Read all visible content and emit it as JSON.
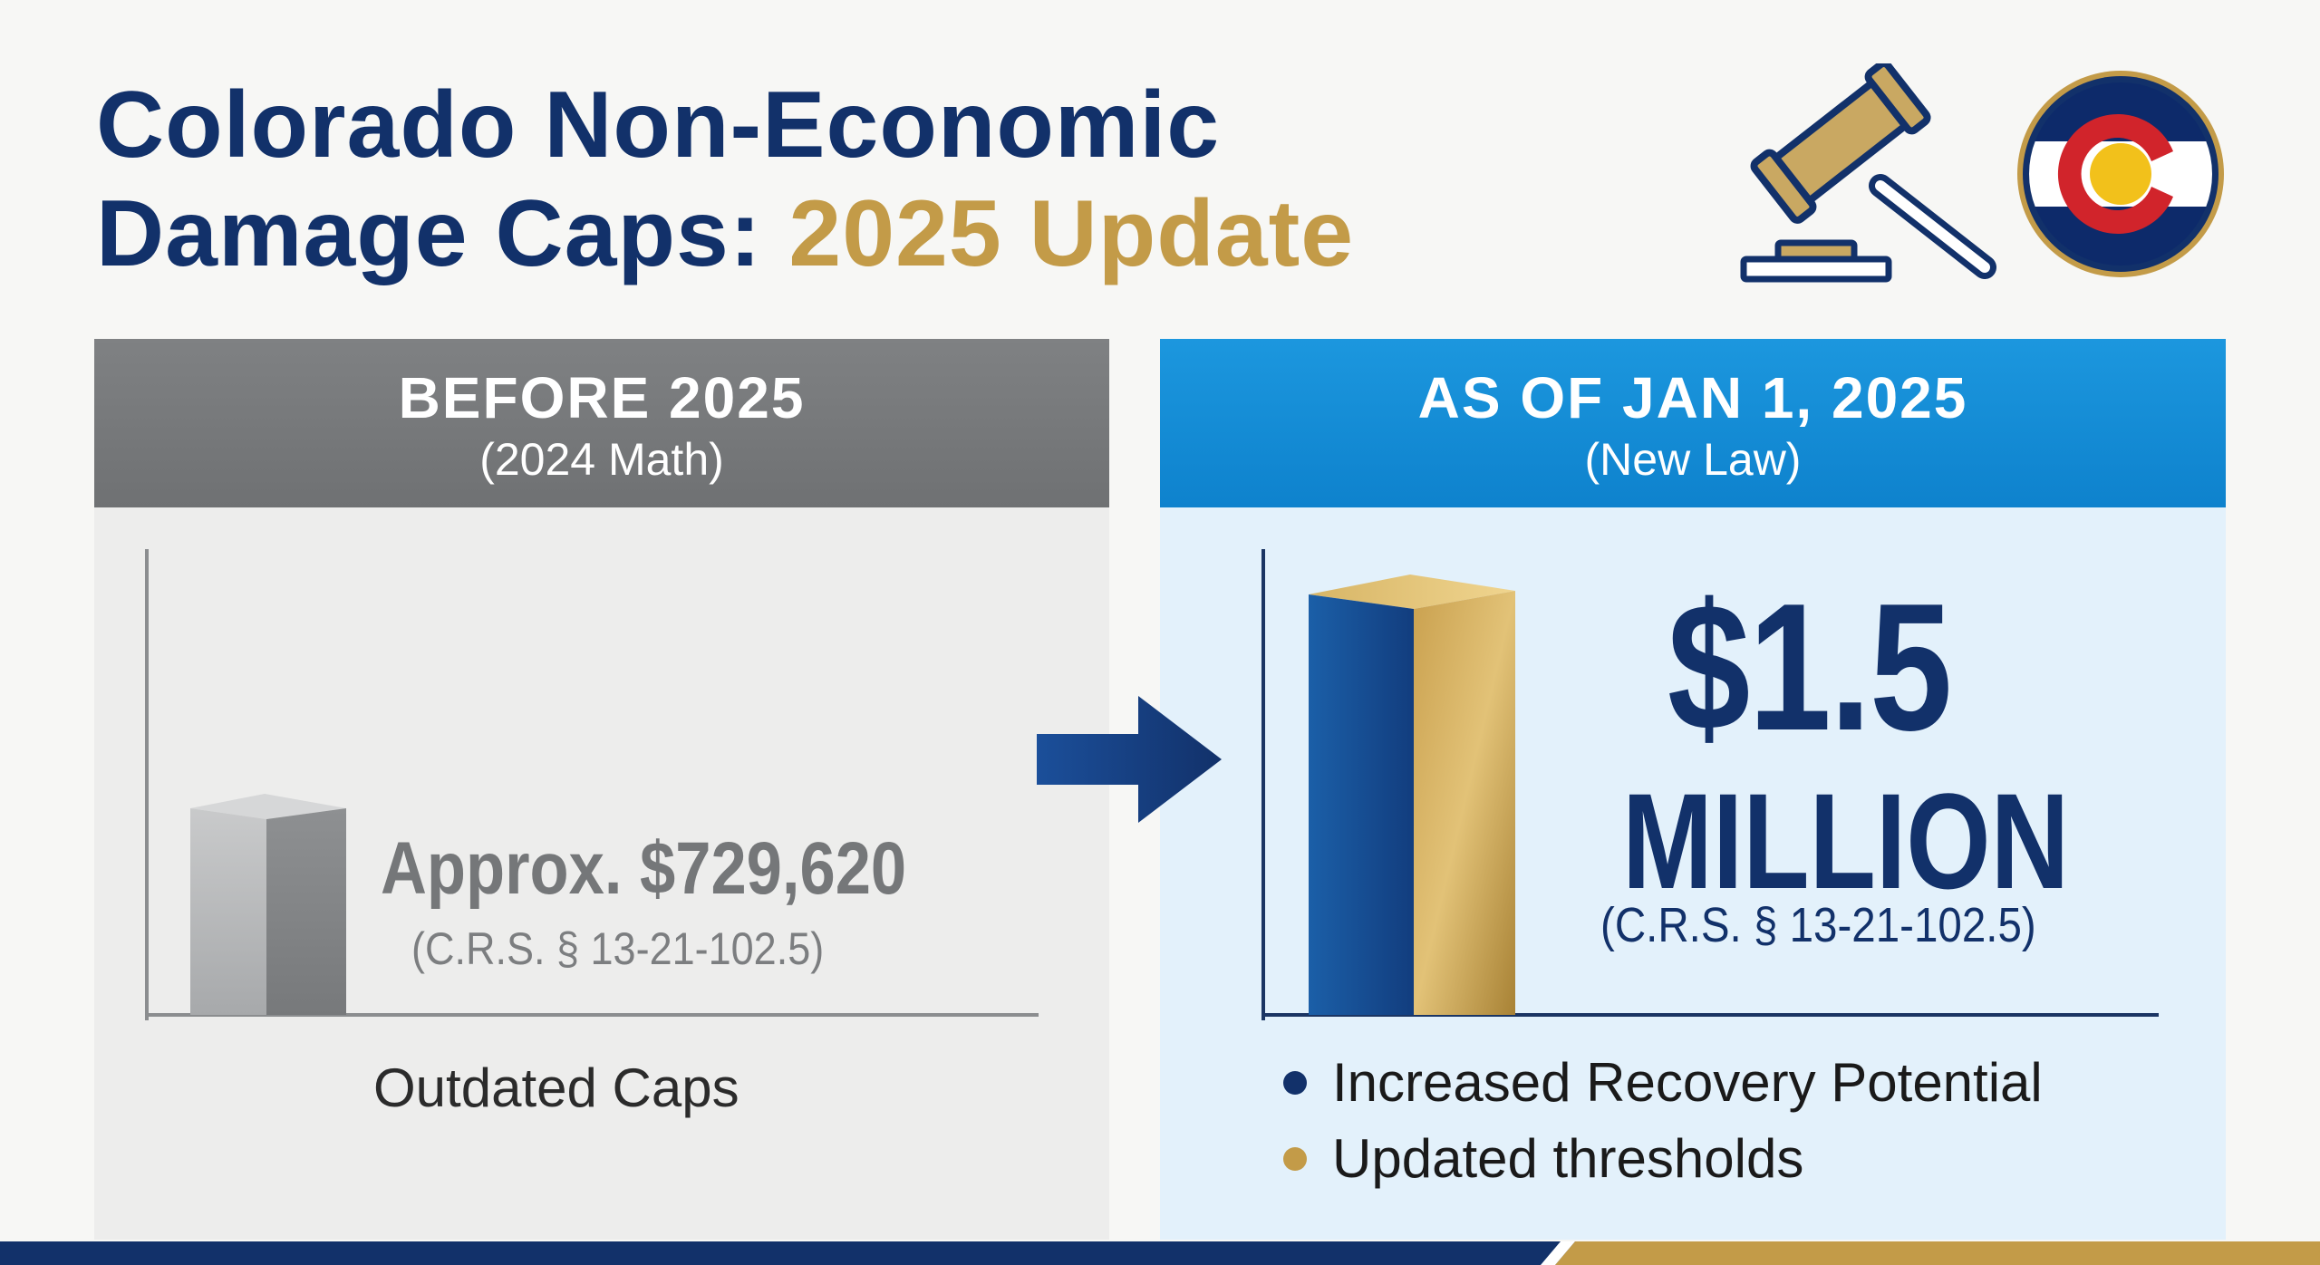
{
  "title": {
    "line1": "Colorado Non-Economic",
    "line2_main": "Damage Caps: ",
    "line2_accent": "2025 Update"
  },
  "icons": {
    "gavel": "gavel-icon",
    "flag": "colorado-flag-icon",
    "arrow": "arrow-right-icon"
  },
  "before": {
    "header": "BEFORE 2025",
    "subheader": "(2024 Math)",
    "amount": "Approx. $729,620",
    "statute": "(C.R.S. § 13-21-102.5)",
    "note": "Outdated Caps"
  },
  "after": {
    "header": "AS OF JAN 1, 2025",
    "subheader": "(New Law)",
    "amount": "$1.5",
    "unit": "MILLION",
    "statute": "(C.R.S. § 13-21-102.5)",
    "bullets": [
      {
        "text": "Increased Recovery Potential",
        "color": "#12316a"
      },
      {
        "text": "Updated thresholds",
        "color": "#c39b48"
      }
    ]
  },
  "colors": {
    "navy": "#12316a",
    "gold": "#c39b48",
    "blue_header": "#1a93db",
    "gray_header": "#77797b"
  }
}
